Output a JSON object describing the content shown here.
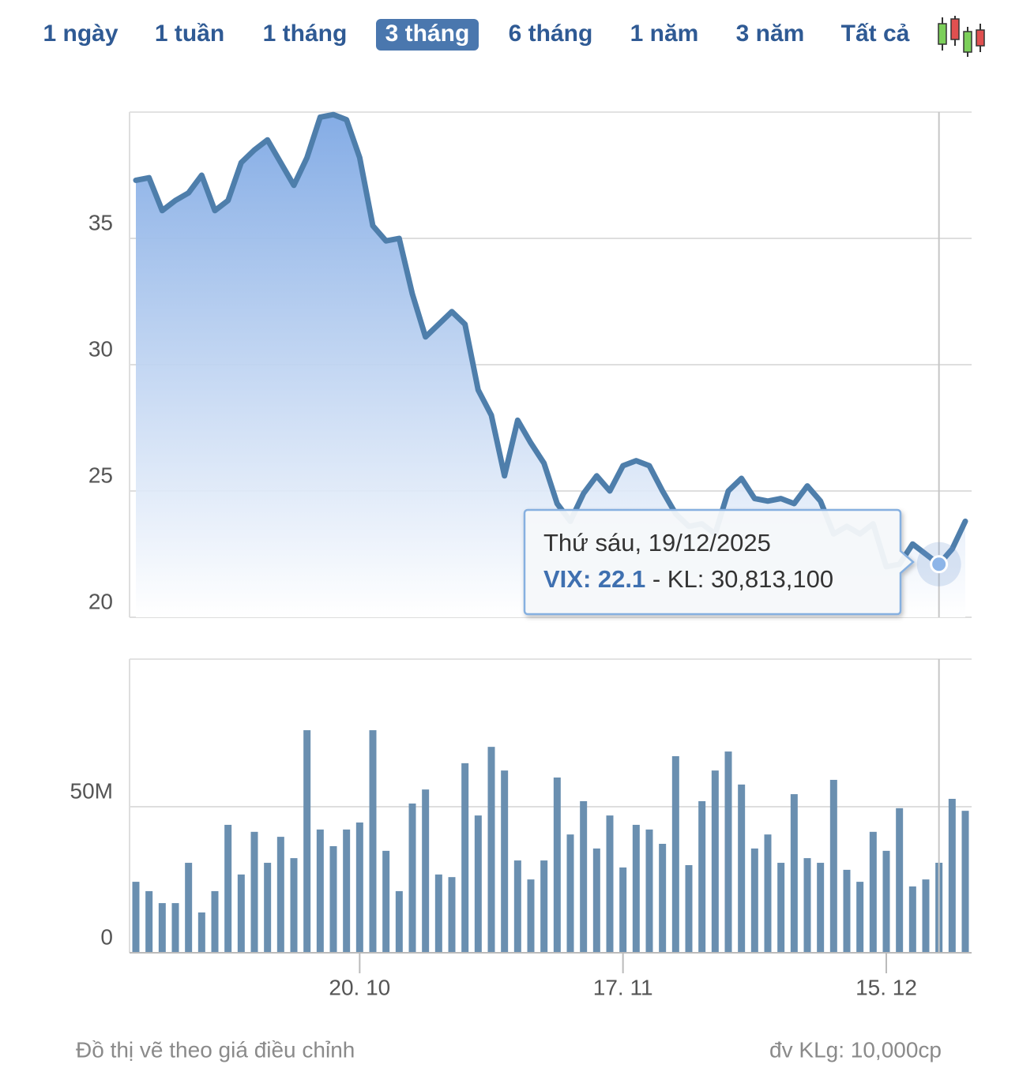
{
  "range_buttons": [
    {
      "label": "1 ngày"
    },
    {
      "label": "1 tuần"
    },
    {
      "label": "1 tháng"
    },
    {
      "label": "3 tháng",
      "selected": true
    },
    {
      "label": "6 tháng"
    },
    {
      "label": "1 năm"
    },
    {
      "label": "3 năm"
    },
    {
      "label": "Tất cả"
    }
  ],
  "chart_data": [
    {
      "type": "area",
      "color": "#4e7eab",
      "fill_color": "#7ea8e4",
      "values": [
        37.3,
        37.4,
        36.1,
        36.5,
        36.8,
        37.5,
        36.1,
        36.5,
        38.0,
        38.5,
        38.9,
        38.0,
        37.1,
        38.2,
        39.8,
        39.9,
        39.7,
        38.2,
        35.5,
        34.9,
        35.0,
        32.8,
        31.1,
        31.6,
        32.1,
        31.6,
        29.0,
        28.0,
        25.6,
        27.8,
        26.9,
        26.1,
        24.5,
        23.8,
        24.9,
        25.6,
        25.0,
        26.0,
        26.2,
        26.0,
        25.0,
        24.1,
        23.6,
        23.7,
        23.3,
        25.0,
        25.5,
        24.7,
        24.6,
        24.7,
        24.5,
        25.2,
        24.6,
        23.3,
        23.6,
        23.3,
        23.7,
        22.0,
        22.1,
        22.9,
        22.5,
        22.1,
        22.7,
        23.8
      ],
      "ylim": [
        20,
        40
      ],
      "yticks": [
        20,
        25,
        30,
        35
      ],
      "grid": true
    },
    {
      "type": "bar",
      "color": "#6a8fb0",
      "categories": [
        null,
        null,
        null,
        null,
        null,
        null,
        null,
        null,
        null,
        null,
        null,
        null,
        null,
        null,
        null,
        null,
        null,
        "20. 10",
        null,
        null,
        null,
        null,
        null,
        null,
        null,
        null,
        null,
        null,
        null,
        null,
        null,
        null,
        null,
        null,
        null,
        null,
        null,
        "17. 11",
        null,
        null,
        null,
        null,
        null,
        null,
        null,
        null,
        null,
        null,
        null,
        null,
        null,
        null,
        null,
        null,
        null,
        null,
        null,
        "15. 12",
        null,
        null,
        null,
        null,
        null,
        null
      ],
      "values": [
        24300000,
        21100000,
        17000000,
        17000000,
        30800000,
        13800000,
        21100000,
        43800000,
        26800000,
        41400000,
        30800000,
        39700000,
        32400000,
        76200000,
        42200000,
        36500000,
        42200000,
        44600000,
        76200000,
        34900000,
        21100000,
        51100000,
        55900000,
        26800000,
        25900000,
        64900000,
        47000000,
        70500000,
        62400000,
        31600000,
        25100000,
        31600000,
        60000000,
        40500000,
        51900000,
        35700000,
        47000000,
        29200000,
        43800000,
        42200000,
        37300000,
        67300000,
        30000000,
        51900000,
        62400000,
        68900000,
        57600000,
        35700000,
        40500000,
        30800000,
        54300000,
        32400000,
        30800000,
        59200000,
        28400000,
        24300000,
        41400000,
        34900000,
        49500000,
        22700000,
        25100000,
        30813100,
        52700000,
        48600000
      ],
      "ylim": [
        0,
        100000000
      ],
      "yticks": [
        0,
        {
          "value": 50000000,
          "label": "50M"
        }
      ],
      "grid": true
    }
  ],
  "tooltip": {
    "title": "Thứ sáu, 19/12/2025",
    "series_label": "VIX: 22.1",
    "detail": " - KL: 30,813,100"
  },
  "footer": {
    "note": "Đồ thị vẽ theo giá điều chỉnh",
    "unit": "đv KLg: 10,000cp"
  }
}
